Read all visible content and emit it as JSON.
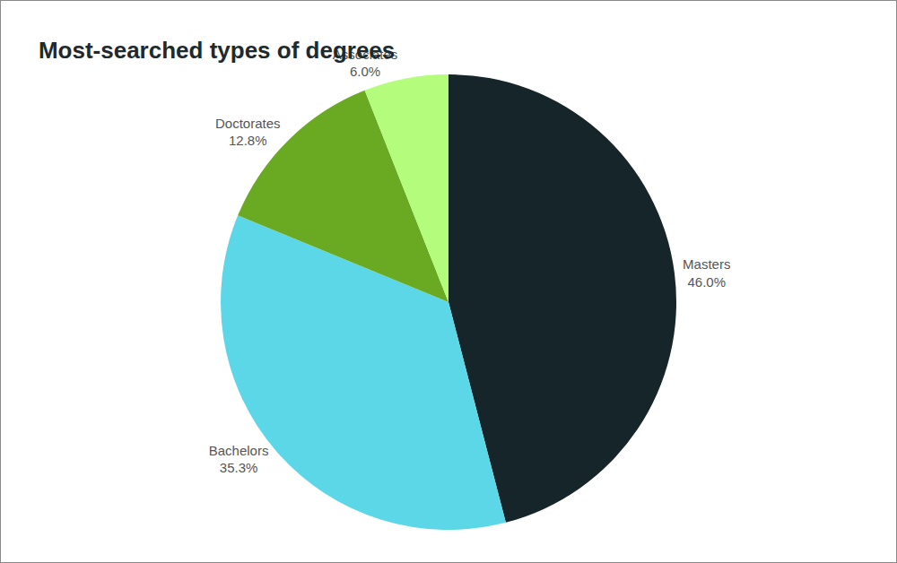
{
  "chart_data": {
    "type": "pie",
    "title": "Most-searched types of degrees",
    "categories": [
      "Masters",
      "Bachelors",
      "Doctorates",
      "Associates"
    ],
    "values": [
      46.0,
      35.3,
      12.8,
      6.0
    ],
    "value_labels": [
      "46.0%",
      "35.3%",
      "12.8%",
      "6.0%"
    ],
    "colors": [
      "#15252a",
      "#5bd7e8",
      "#6aaa22",
      "#b4fd7c"
    ],
    "data_labels": true
  }
}
